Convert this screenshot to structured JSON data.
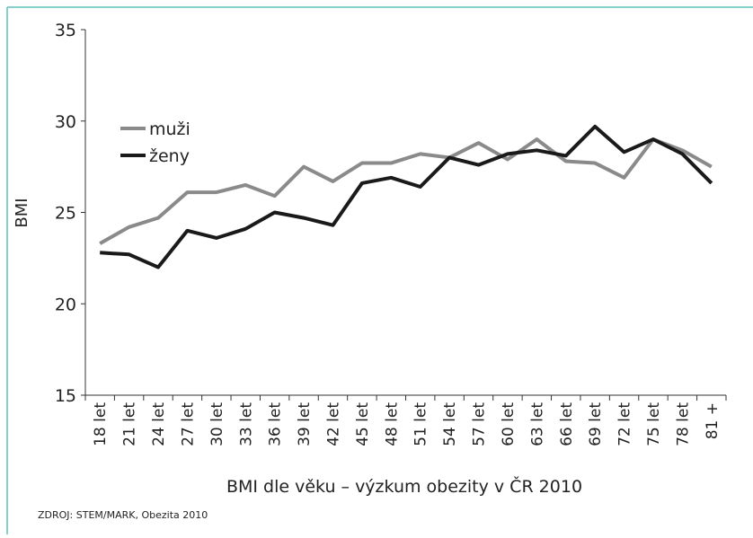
{
  "chart_data": {
    "type": "line",
    "x_label": "BMI dle věku – výzkum obezity v ČR 2010",
    "y_label": "BMI",
    "source": "ZDROJ: STEM/MARK, Obezita 2010",
    "categories": [
      "18 let",
      "21 let",
      "24 let",
      "27 let",
      "30 let",
      "33 let",
      "36 let",
      "39 let",
      "42 let",
      "45 let",
      "48 let",
      "51 let",
      "54 let",
      "57 let",
      "60 let",
      "63 let",
      "66 let",
      "69 let",
      "72 let",
      "75 let",
      "78 let",
      "81 +"
    ],
    "series": [
      {
        "name": "muži",
        "color": "#8a8a8a",
        "values": [
          23.3,
          24.2,
          24.7,
          26.1,
          26.1,
          26.5,
          25.9,
          27.5,
          26.7,
          27.7,
          27.7,
          28.2,
          28.0,
          28.8,
          27.9,
          29.0,
          27.8,
          27.7,
          26.9,
          29.0,
          28.4,
          27.5
        ]
      },
      {
        "name": "ženy",
        "color": "#1a1a1a",
        "values": [
          22.8,
          22.7,
          22.0,
          24.0,
          23.6,
          24.1,
          25.0,
          24.7,
          24.3,
          26.6,
          26.9,
          26.4,
          28.0,
          27.6,
          28.2,
          28.4,
          28.1,
          29.7,
          28.3,
          29.0,
          28.2,
          26.6
        ]
      }
    ],
    "ylim": [
      15,
      35
    ],
    "yticks": [
      15,
      20,
      25,
      30,
      35
    ]
  }
}
